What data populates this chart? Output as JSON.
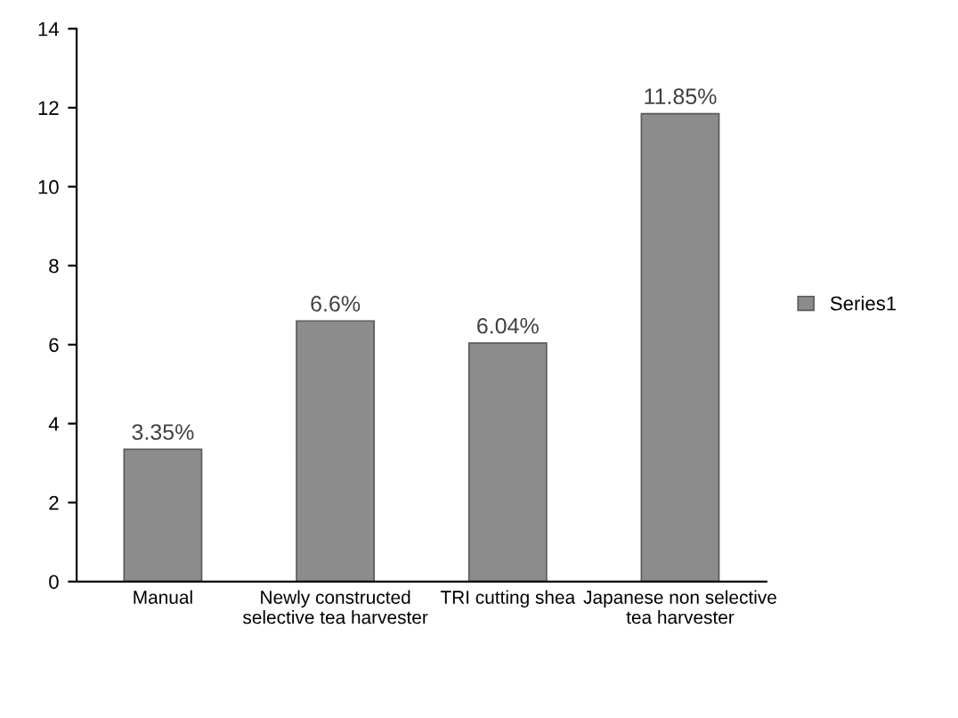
{
  "chart_data": {
    "type": "bar",
    "categories": [
      "Manual",
      "Newly constructed\nselective tea harvester",
      "TRI cutting shea",
      "Japanese non selective\ntea harvester"
    ],
    "series": [
      {
        "name": "Series1",
        "color": "#8c8c8c",
        "values": [
          3.35,
          6.6,
          6.04,
          11.85
        ],
        "value_labels": [
          "3.35%",
          "6.6%",
          "6.04%",
          "11.85%"
        ]
      }
    ],
    "ylim": [
      0,
      14
    ],
    "yticks": [
      0,
      2,
      4,
      6,
      8,
      10,
      12,
      14
    ],
    "grid": false,
    "legend": "right"
  }
}
